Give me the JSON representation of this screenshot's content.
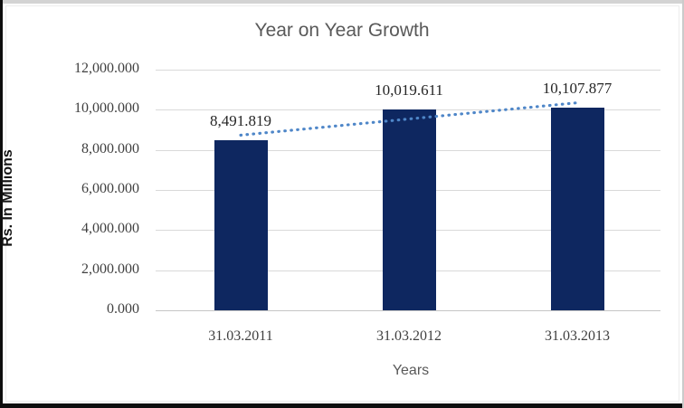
{
  "chart_data": {
    "type": "bar",
    "title": "Year on Year Growth",
    "xlabel": "Years",
    "ylabel": "Rs. In Millions",
    "categories": [
      "31.03.2011",
      "31.03.2012",
      "31.03.2013"
    ],
    "values": [
      8491.819,
      10019.611,
      10107.877
    ],
    "data_labels": [
      "8,491.819",
      "10,019.611",
      "10,107.877"
    ],
    "y_ticks": [
      0,
      2000,
      4000,
      6000,
      8000,
      10000,
      12000
    ],
    "y_tick_labels_top_to_bottom": [
      "12,000.000",
      "10,000.000",
      "8,000.000",
      "6,000.000",
      "4,000.000",
      "2,000.000",
      "0.000"
    ],
    "ylim": [
      0,
      12000
    ],
    "grid": true,
    "legend": false,
    "trendline": {
      "type": "linear",
      "style": "dotted"
    },
    "colors": {
      "bar": "#0e2760",
      "trendline": "#4e86c8",
      "gridline": "#d9d9d9",
      "axis_line": "#c6c6c6",
      "title_text": "#595959",
      "tick_text": "#404040",
      "data_label_text": "#262626",
      "y_axis_title_text": "#141414",
      "frame_top": "#d3d3d3",
      "frame_bottom": "#0d0d0d"
    }
  }
}
